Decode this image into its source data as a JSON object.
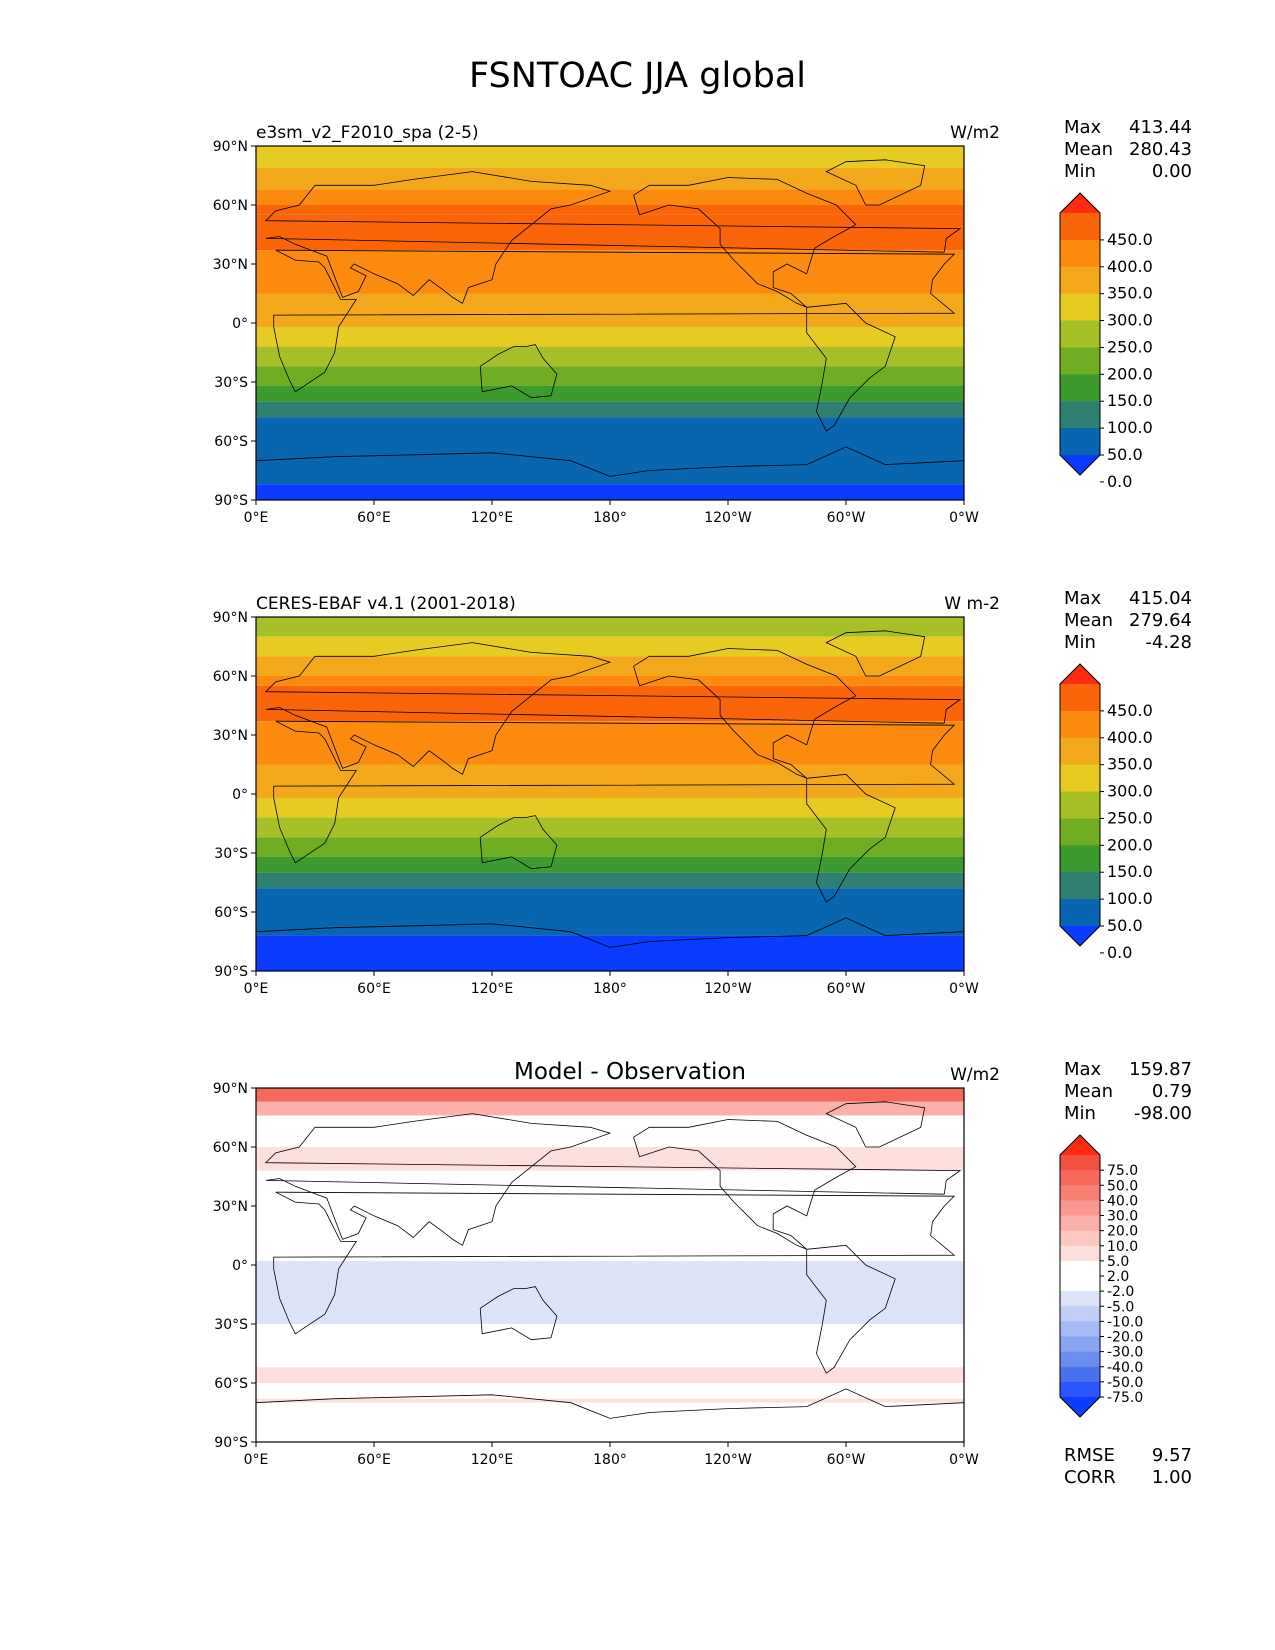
{
  "title": "FSNTOAC JJA global",
  "axes": {
    "lat_ticks": [
      "90°N",
      "60°N",
      "30°N",
      "0°",
      "30°S",
      "60°S",
      "90°S"
    ],
    "lon_ticks": [
      "0°E",
      "60°E",
      "120°E",
      "180°",
      "120°W",
      "60°W",
      "0°W"
    ]
  },
  "panels": [
    {
      "left_title": "e3sm_v2_F2010_spa (2-5)",
      "center_title": "",
      "units": "W/m2",
      "stats": [
        {
          "label": "Max",
          "value": "413.44"
        },
        {
          "label": "Mean",
          "value": "280.43"
        },
        {
          "label": "Min",
          "value": "0.00"
        }
      ],
      "colorbar": {
        "colors": [
          "#0b3bff",
          "#0865b0",
          "#2f8070",
          "#3d9a2f",
          "#6fae23",
          "#a8c028",
          "#e6cb22",
          "#f4a81c",
          "#fb8a0f",
          "#fa650a",
          "#ff2a10"
        ],
        "labels": [
          "0.0",
          "50.0",
          "100.0",
          "150.0",
          "200.0",
          "250.0",
          "300.0",
          "350.0",
          "400.0",
          "450.0"
        ]
      },
      "bands": [
        {
          "lat": [
            90,
            79
          ],
          "color": "#e6cb22"
        },
        {
          "lat": [
            79,
            68
          ],
          "color": "#f4a81c"
        },
        {
          "lat": [
            68,
            60
          ],
          "color": "#fb8a0f"
        },
        {
          "lat": [
            60,
            55
          ],
          "color": "#fa650a"
        },
        {
          "lat": [
            55,
            37
          ],
          "color": "#fa650a"
        },
        {
          "lat": [
            37,
            15
          ],
          "color": "#fb8a0f"
        },
        {
          "lat": [
            15,
            -2
          ],
          "color": "#f4a81c"
        },
        {
          "lat": [
            -2,
            -12
          ],
          "color": "#e6cb22"
        },
        {
          "lat": [
            -12,
            -22
          ],
          "color": "#a8c028"
        },
        {
          "lat": [
            -22,
            -32
          ],
          "color": "#6fae23"
        },
        {
          "lat": [
            -32,
            -40
          ],
          "color": "#3d9a2f"
        },
        {
          "lat": [
            -40,
            -48
          ],
          "color": "#2f8070"
        },
        {
          "lat": [
            -48,
            -60
          ],
          "color": "#0865b0"
        },
        {
          "lat": [
            -60,
            -82
          ],
          "color": "#0865b0"
        },
        {
          "lat": [
            -82,
            -90
          ],
          "color": "#0b3bff"
        }
      ]
    },
    {
      "left_title": "CERES-EBAF v4.1 (2001-2018)",
      "center_title": "",
      "units": "W m-2",
      "stats": [
        {
          "label": "Max",
          "value": "415.04"
        },
        {
          "label": "Mean",
          "value": "279.64"
        },
        {
          "label": "Min",
          "value": "-4.28"
        }
      ],
      "colorbar": {
        "colors": [
          "#0b3bff",
          "#0865b0",
          "#2f8070",
          "#3d9a2f",
          "#6fae23",
          "#a8c028",
          "#e6cb22",
          "#f4a81c",
          "#fb8a0f",
          "#fa650a",
          "#ff2a10"
        ],
        "labels": [
          "0.0",
          "50.0",
          "100.0",
          "150.0",
          "200.0",
          "250.0",
          "300.0",
          "350.0",
          "400.0",
          "450.0"
        ]
      },
      "bands": [
        {
          "lat": [
            90,
            80
          ],
          "color": "#a8c028"
        },
        {
          "lat": [
            80,
            70
          ],
          "color": "#e6cb22"
        },
        {
          "lat": [
            70,
            60
          ],
          "color": "#f4a81c"
        },
        {
          "lat": [
            60,
            55
          ],
          "color": "#fb8a0f"
        },
        {
          "lat": [
            55,
            37
          ],
          "color": "#fa650a"
        },
        {
          "lat": [
            37,
            15
          ],
          "color": "#fb8a0f"
        },
        {
          "lat": [
            15,
            -2
          ],
          "color": "#f4a81c"
        },
        {
          "lat": [
            -2,
            -12
          ],
          "color": "#e6cb22"
        },
        {
          "lat": [
            -12,
            -22
          ],
          "color": "#a8c028"
        },
        {
          "lat": [
            -22,
            -32
          ],
          "color": "#6fae23"
        },
        {
          "lat": [
            -32,
            -40
          ],
          "color": "#3d9a2f"
        },
        {
          "lat": [
            -40,
            -48
          ],
          "color": "#2f8070"
        },
        {
          "lat": [
            -48,
            -60
          ],
          "color": "#0865b0"
        },
        {
          "lat": [
            -60,
            -72
          ],
          "color": "#0865b0"
        },
        {
          "lat": [
            -72,
            -90
          ],
          "color": "#0b3bff"
        }
      ]
    },
    {
      "left_title": "",
      "center_title": "Model - Observation",
      "units": "W/m2",
      "stats": [
        {
          "label": "Max",
          "value": "159.87"
        },
        {
          "label": "Mean",
          "value": "0.79"
        },
        {
          "label": "Min",
          "value": "-98.00"
        }
      ],
      "extra_stats": [
        {
          "label": "RMSE",
          "value": "9.57"
        },
        {
          "label": "CORR",
          "value": "1.00"
        }
      ],
      "colorbar": {
        "colors": [
          "#0b3bff",
          "#2a55ff",
          "#4a72f0",
          "#6a8ef0",
          "#8aa6f2",
          "#a6baf4",
          "#c2cef6",
          "#dde4fa",
          "#ffffff",
          "#ffffff",
          "#fde0dd",
          "#fcc8c2",
          "#fbb0a8",
          "#f9988e",
          "#f78074",
          "#f5685a",
          "#f35040",
          "#ff2a10"
        ],
        "labels": [
          "-75.0",
          "-50.0",
          "-40.0",
          "-30.0",
          "-20.0",
          "-10.0",
          "-5.0",
          "-2.0",
          "2.0",
          "5.0",
          "10.0",
          "20.0",
          "30.0",
          "40.0",
          "50.0",
          "75.0"
        ]
      },
      "bands": [
        {
          "lat": [
            90,
            83
          ],
          "color": "#f5685a"
        },
        {
          "lat": [
            83,
            76
          ],
          "color": "#fbb0a8"
        },
        {
          "lat": [
            76,
            60
          ],
          "color": "#ffffff"
        },
        {
          "lat": [
            60,
            48
          ],
          "color": "#fde0dd"
        },
        {
          "lat": [
            48,
            10
          ],
          "color": "#ffffff"
        },
        {
          "lat": [
            10,
            2
          ],
          "color": "#ffffff"
        },
        {
          "lat": [
            2,
            -12
          ],
          "color": "#dde4fa"
        },
        {
          "lat": [
            -12,
            -30
          ],
          "color": "#dde4fa"
        },
        {
          "lat": [
            -30,
            -52
          ],
          "color": "#ffffff"
        },
        {
          "lat": [
            -52,
            -60
          ],
          "color": "#fde0dd"
        },
        {
          "lat": [
            -60,
            -68
          ],
          "color": "#ffffff"
        },
        {
          "lat": [
            -68,
            -70
          ],
          "color": "#fde0dd"
        },
        {
          "lat": [
            -70,
            -90
          ],
          "color": "#ffffff"
        }
      ]
    }
  ]
}
